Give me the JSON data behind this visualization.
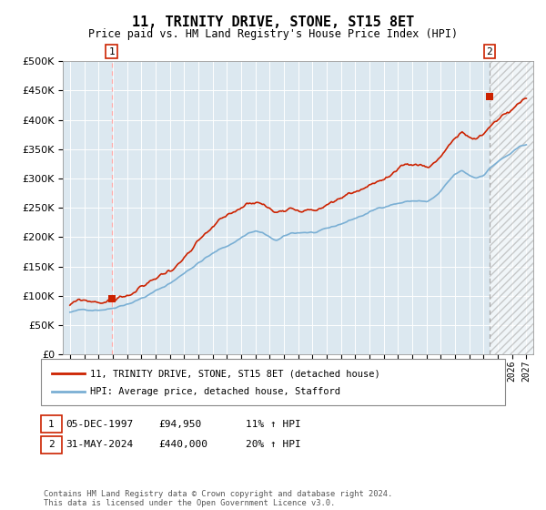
{
  "title": "11, TRINITY DRIVE, STONE, ST15 8ET",
  "subtitle": "Price paid vs. HM Land Registry's House Price Index (HPI)",
  "sale1_date": "05-DEC-1997",
  "sale1_price": 94950,
  "sale1_hpi_pct": "11% ↑ HPI",
  "sale1_year": 1997.92,
  "sale2_date": "31-MAY-2024",
  "sale2_price": 440000,
  "sale2_hpi_pct": "20% ↑ HPI",
  "sale2_year": 2024.42,
  "legend1": "11, TRINITY DRIVE, STONE, ST15 8ET (detached house)",
  "legend2": "HPI: Average price, detached house, Stafford",
  "footer": "Contains HM Land Registry data © Crown copyright and database right 2024.\nThis data is licensed under the Open Government Licence v3.0.",
  "hpi_line_color": "#7aafd4",
  "price_line_color": "#cc2200",
  "marker_color": "#cc2200",
  "plot_bg_color": "#dce8f0",
  "ylim": [
    0,
    500000
  ],
  "xlim_start": 1994.5,
  "xlim_end": 2027.5
}
